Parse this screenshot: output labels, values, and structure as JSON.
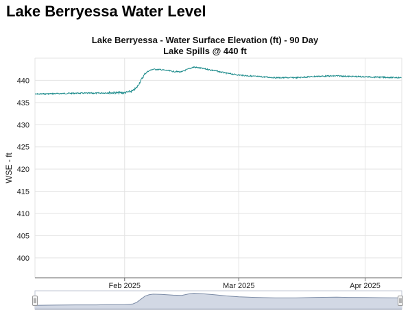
{
  "page": {
    "title": "Lake Berryessa Water Level"
  },
  "chart_data": {
    "type": "line",
    "title": "Lake Berryessa - Water Surface Elevation (ft) - 90 Day",
    "subtitle": "Lake Spills @ 440 ft",
    "xlabel": "",
    "ylabel": "WSE - ft",
    "ylim": [
      395.5,
      445.0
    ],
    "xlim": [
      "2025-01-10",
      "2025-04-10"
    ],
    "yticks": [
      400,
      405,
      410,
      415,
      420,
      425,
      430,
      435,
      440
    ],
    "xticks": [
      {
        "date": "2025-02-01",
        "label": "Feb 2025"
      },
      {
        "date": "2025-03-01",
        "label": "Mar 2025"
      },
      {
        "date": "2025-04-01",
        "label": "Apr 2025"
      }
    ],
    "grid": true,
    "line_color": "#1a8a8a",
    "series": [
      {
        "x": [
          "2025-01-10",
          "2025-01-15",
          "2025-01-20",
          "2025-01-25",
          "2025-01-28",
          "2025-02-01",
          "2025-02-03",
          "2025-02-04",
          "2025-02-05",
          "2025-02-06",
          "2025-02-07",
          "2025-02-08",
          "2025-02-10",
          "2025-02-13",
          "2025-02-15",
          "2025-02-17",
          "2025-02-18",
          "2025-02-20",
          "2025-02-23",
          "2025-02-26",
          "2025-03-01",
          "2025-03-05",
          "2025-03-10",
          "2025-03-15",
          "2025-03-20",
          "2025-03-25",
          "2025-03-28",
          "2025-04-01",
          "2025-04-05",
          "2025-04-10"
        ],
        "y": [
          436.9,
          437.0,
          437.1,
          437.1,
          437.2,
          437.2,
          437.6,
          438.4,
          440.0,
          441.5,
          442.2,
          442.5,
          442.4,
          442.0,
          441.9,
          442.7,
          443.0,
          442.7,
          442.2,
          441.6,
          441.2,
          440.9,
          440.6,
          440.6,
          440.9,
          441.0,
          440.9,
          440.8,
          440.7,
          440.6
        ]
      }
    ]
  },
  "navigator": {
    "fill_color": "#d2d8e4",
    "line_color": "#7a8aa5"
  }
}
